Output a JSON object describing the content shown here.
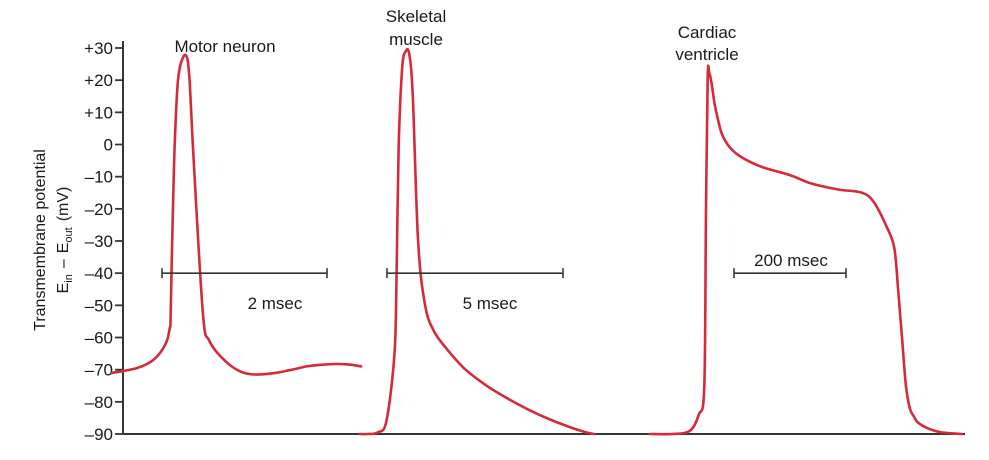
{
  "chart_data": {
    "type": "line",
    "ylabel_main": "Transmembrane potential",
    "ylabel_sub": {
      "e1": "E",
      "sub1": "in",
      "dash": "–",
      "e2": "E",
      "sub2": "out",
      "unit": "(mV)"
    },
    "ylim": [
      -90,
      30
    ],
    "y_ticks": [
      {
        "value": 30,
        "label": "+30"
      },
      {
        "value": 20,
        "label": "+20"
      },
      {
        "value": 10,
        "label": "+10"
      },
      {
        "value": 0,
        "label": "0"
      },
      {
        "value": -10,
        "label": "–10"
      },
      {
        "value": -20,
        "label": "–20"
      },
      {
        "value": -30,
        "label": "–30"
      },
      {
        "value": -40,
        "label": "–40"
      },
      {
        "value": -50,
        "label": "–50"
      },
      {
        "value": -60,
        "label": "–60"
      },
      {
        "value": -70,
        "label": "–70"
      },
      {
        "value": -80,
        "label": "–80"
      },
      {
        "value": -90,
        "label": "–90"
      }
    ],
    "grid": false,
    "line_color": "#d42a3a",
    "scale_bar_color": "#2f3a33",
    "series": [
      {
        "name": "Motor neuron",
        "title_lines": [
          "Motor neuron"
        ],
        "scale_bar_label": "2 msec",
        "scale_bar_ms": 2,
        "scale_bar_mv": -40,
        "x_ms": [
          0,
          0.3,
          0.5,
          0.65,
          0.7,
          0.71,
          0.73,
          0.76,
          0.8,
          0.86,
          0.91,
          0.94,
          0.98,
          1.1,
          1.18,
          1.36,
          1.55,
          1.73,
          1.98,
          2.18,
          2.36,
          2.53,
          2.73,
          2.91,
          3.02
        ],
        "y_mv": [
          -71,
          -69.5,
          -67,
          -62,
          -57,
          -54,
          -30,
          0,
          20,
          27,
          27,
          20,
          0,
          -52,
          -61,
          -67,
          -70.5,
          -71.5,
          -71,
          -70,
          -69,
          -68.5,
          -68.2,
          -68.5,
          -69
        ]
      },
      {
        "name": "Skeletal muscle",
        "title_lines": [
          "Skeletal",
          "muscle"
        ],
        "scale_bar_label": "5 msec",
        "scale_bar_ms": 5,
        "scale_bar_mv": -40,
        "x_ms": [
          0,
          0.2,
          0.5,
          0.75,
          0.98,
          1.04,
          1.1,
          1.2,
          1.3,
          1.4,
          1.5,
          1.65,
          1.85,
          2.1,
          2.5,
          3.0,
          3.6,
          4.2,
          4.8,
          5.4,
          6.0,
          6.43,
          6.65
        ],
        "y_mv": [
          -90,
          -90,
          -89.5,
          -86,
          -65,
          -40,
          0,
          24,
          29,
          28,
          15,
          -30,
          -50,
          -58,
          -64,
          -70,
          -75,
          -79,
          -82.5,
          -85.5,
          -88,
          -89.5,
          -90
        ]
      },
      {
        "name": "Cardiac ventricle",
        "title_lines": [
          "Cardiac",
          "ventricle"
        ],
        "scale_bar_label": "200 msec",
        "scale_bar_ms": 200,
        "scale_bar_mv": -40,
        "x_ms": [
          0,
          40,
          71,
          87,
          97,
          100,
          103,
          106,
          110,
          115,
          121,
          129,
          143,
          164,
          200,
          250,
          286,
          336,
          379,
          400,
          421,
          436,
          443,
          450,
          457,
          464,
          471,
          479,
          500,
          521,
          557
        ],
        "y_mv": [
          -90,
          -90,
          -89,
          -84,
          -75,
          -20,
          21,
          22,
          19,
          13,
          8,
          3,
          -1,
          -4,
          -7,
          -9.5,
          -12,
          -14,
          -15,
          -18,
          -25,
          -32,
          -45,
          -60,
          -75,
          -82,
          -84.5,
          -86.5,
          -88.5,
          -89.5,
          -90
        ]
      }
    ]
  }
}
